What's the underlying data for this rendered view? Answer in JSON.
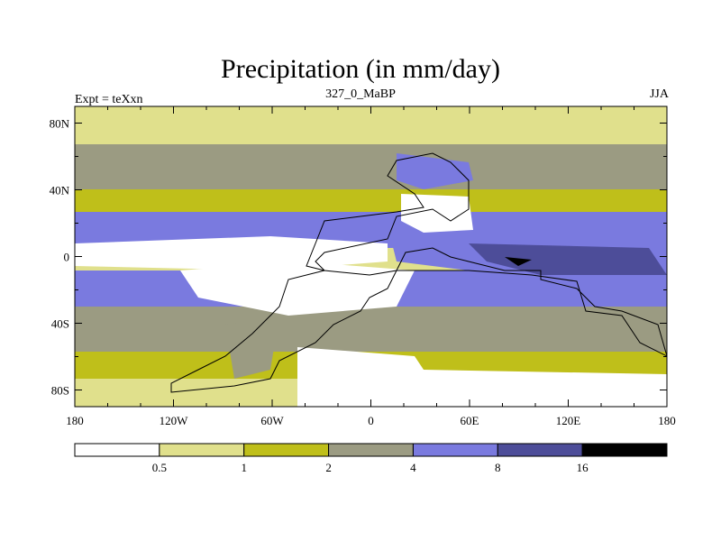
{
  "chart_data": {
    "type": "heatmap",
    "title": "Precipitation (in mm/day)",
    "left_label": "Expt = teXxn",
    "center_label": "327_0_MaBP",
    "right_label": "JJA",
    "x_axis": {
      "range": [
        -180,
        180
      ],
      "ticks": [
        -180,
        -120,
        -60,
        0,
        60,
        120,
        180
      ],
      "tick_labels": [
        "180",
        "120W",
        "60W",
        "0",
        "60E",
        "120E",
        "180"
      ]
    },
    "y_axis": {
      "range": [
        -90,
        90
      ],
      "ticks": [
        80,
        40,
        0,
        -40,
        -80
      ],
      "tick_labels": [
        "80N",
        "40N",
        "0",
        "40S",
        "80S"
      ]
    },
    "colorbar": {
      "levels": [
        0.5,
        1,
        2,
        4,
        8,
        16
      ],
      "level_labels": [
        "0.5",
        "1",
        "2",
        "4",
        "8",
        "16"
      ],
      "colors": [
        "#ffffff",
        "#e0e08c",
        "#bfbf1a",
        "#9b9b82",
        "#7a7adf",
        "#4d4d99",
        "#000000"
      ]
    },
    "field_description": "Zonal precipitation bands over an idealized paleogeography"
  }
}
